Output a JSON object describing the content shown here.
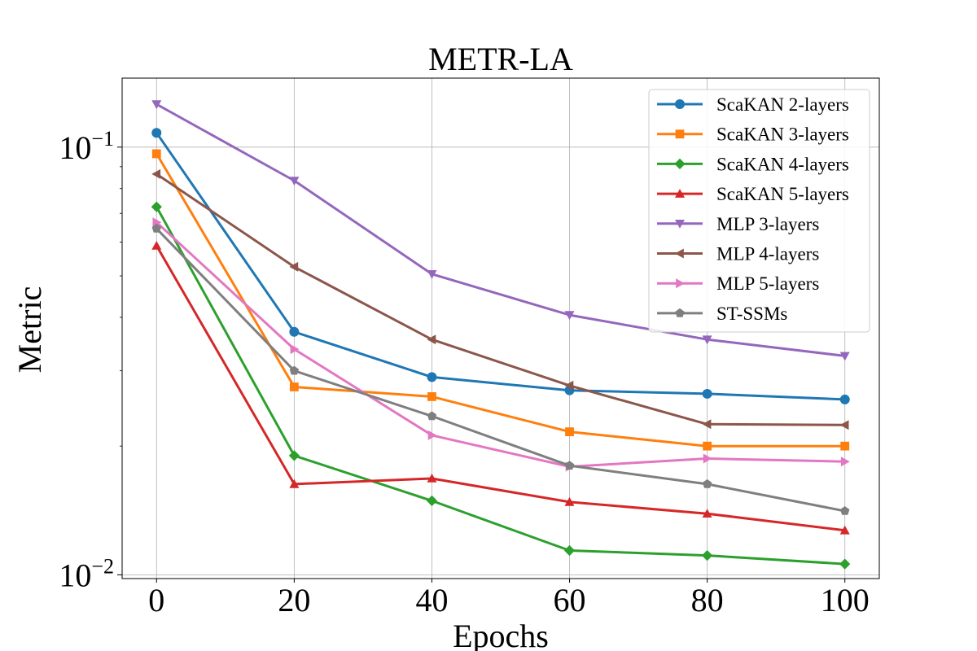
{
  "chart_data": {
    "type": "line",
    "title": "METR-LA",
    "xlabel": "Epochs",
    "ylabel": "Metric",
    "x": [
      0,
      20,
      40,
      60,
      80,
      100
    ],
    "xticks": [
      "0",
      "20",
      "40",
      "60",
      "80",
      "100"
    ],
    "xlim": [
      -5,
      105
    ],
    "yscale": "log",
    "ylim": [
      0.0098,
      0.145
    ],
    "yticks": [
      {
        "value": 0.1,
        "base": "10",
        "exp": "−1"
      },
      {
        "value": 0.01,
        "base": "10",
        "exp": "−2"
      }
    ],
    "grid": true,
    "legend_position": "top-right",
    "series": [
      {
        "name": "ScaKAN 2-layers",
        "color": "#1f77b4",
        "marker": "circle",
        "values": [
          0.108,
          0.037,
          0.029,
          0.027,
          0.0265,
          0.0257
        ]
      },
      {
        "name": "ScaKAN 3-layers",
        "color": "#ff7f0e",
        "marker": "square",
        "values": [
          0.0965,
          0.0275,
          0.0261,
          0.0216,
          0.02,
          0.02
        ]
      },
      {
        "name": "ScaKAN 4-layers",
        "color": "#2ca02c",
        "marker": "diamond",
        "values": [
          0.0725,
          0.019,
          0.0149,
          0.0114,
          0.0111,
          0.0106
        ]
      },
      {
        "name": "ScaKAN 5-layers",
        "color": "#d62728",
        "marker": "triangle-up",
        "values": [
          0.0588,
          0.0163,
          0.0168,
          0.0148,
          0.0139,
          0.0127
        ]
      },
      {
        "name": "MLP 3-layers",
        "color": "#9467bd",
        "marker": "triangle-down",
        "values": [
          0.126,
          0.0835,
          0.0505,
          0.0405,
          0.0355,
          0.0325
        ]
      },
      {
        "name": "MLP 4-layers",
        "color": "#8c564b",
        "marker": "triangle-left",
        "values": [
          0.0865,
          0.0525,
          0.0355,
          0.0277,
          0.0225,
          0.0224
        ]
      },
      {
        "name": "MLP 5-layers",
        "color": "#e377c2",
        "marker": "triangle-right",
        "values": [
          0.0667,
          0.0337,
          0.0212,
          0.0179,
          0.0187,
          0.0184
        ]
      },
      {
        "name": "ST-SSMs",
        "color": "#7f7f7f",
        "marker": "pentagon",
        "values": [
          0.0645,
          0.03,
          0.0235,
          0.018,
          0.0163,
          0.0141
        ]
      }
    ]
  }
}
